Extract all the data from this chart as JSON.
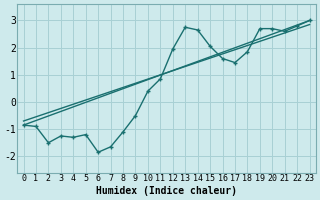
{
  "xlabel": "Humidex (Indice chaleur)",
  "ylabel": "",
  "bg_color": "#ceeaec",
  "grid_color": "#a8d0d4",
  "line_color": "#1a7070",
  "xlim": [
    -0.5,
    23.5
  ],
  "ylim": [
    -2.6,
    3.6
  ],
  "xticks": [
    0,
    1,
    2,
    3,
    4,
    5,
    6,
    7,
    8,
    9,
    10,
    11,
    12,
    13,
    14,
    15,
    16,
    17,
    18,
    19,
    20,
    21,
    22,
    23
  ],
  "yticks": [
    -2,
    -1,
    0,
    1,
    2,
    3
  ],
  "line1_x": [
    0,
    23
  ],
  "line1_y": [
    -0.85,
    3.0
  ],
  "line2_x": [
    0,
    23
  ],
  "line2_y": [
    -0.7,
    2.85
  ],
  "zigzag_x": [
    0,
    1,
    2,
    3,
    4,
    5,
    6,
    7,
    8,
    9,
    10,
    11,
    12,
    13,
    14,
    15,
    16,
    17,
    18,
    19,
    20,
    21,
    22,
    23
  ],
  "zigzag_y": [
    -0.85,
    -0.9,
    -1.5,
    -1.25,
    -1.3,
    -1.2,
    -1.85,
    -1.65,
    -1.1,
    -0.5,
    0.4,
    0.85,
    1.95,
    2.75,
    2.65,
    2.05,
    1.6,
    1.45,
    1.85,
    2.7,
    2.7,
    2.6,
    2.8,
    3.0
  ],
  "tick_fontsize": 6,
  "label_fontsize": 7
}
